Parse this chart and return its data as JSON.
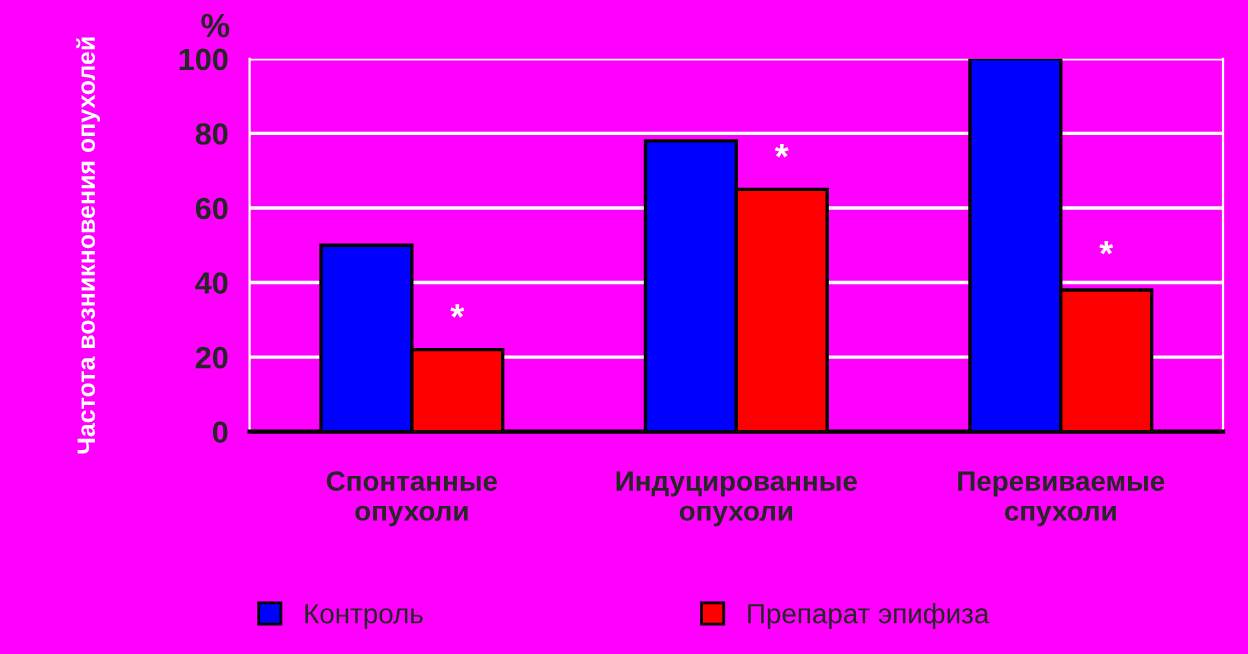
{
  "chart_data": {
    "type": "bar",
    "categories": [
      "Спонтанные\nопухоли",
      "Индуцированные\nопухоли",
      "Перевиваемые\nспухоли"
    ],
    "series": [
      {
        "name": "Контроль",
        "color": "#0000ff",
        "values": [
          50,
          78,
          100
        ]
      },
      {
        "name": "Препарат эпифиза",
        "color": "#ff0000",
        "values": [
          22,
          65,
          38
        ]
      }
    ],
    "ylabel": "Частота возникновения опухолей",
    "annotations": [
      "%",
      {
        "text": "*",
        "x": "Спонтанные\nопухоли",
        "y": 30
      },
      {
        "text": "*",
        "x": "Индуцированные\nопухоли",
        "y": 73
      },
      {
        "text": "*",
        "x": "Перевиваемые\nспухоли",
        "y": 47
      }
    ],
    "ylim": [
      0,
      100
    ],
    "yticks": [
      0,
      20,
      40,
      60,
      80,
      100
    ],
    "grid": "y",
    "legend": "bottom"
  }
}
